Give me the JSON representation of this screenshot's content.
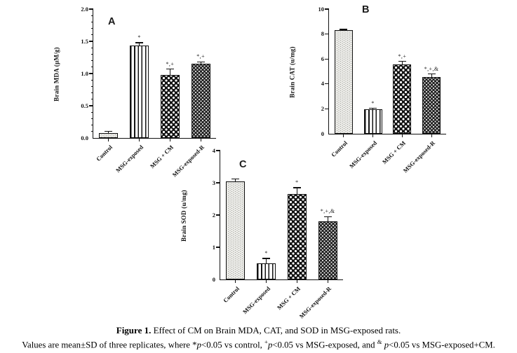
{
  "chart_data": [
    {
      "panel_label": "A",
      "type": "bar",
      "ylabel": "Brain MDA (µM/g)",
      "ylim": [
        0,
        2
      ],
      "ytick_values": [
        0,
        0.5,
        1,
        1.5,
        2
      ],
      "yticks": [
        "0.0",
        "0.5",
        "1.0",
        "1.5",
        "2.0"
      ],
      "minor_per_major": 5,
      "categories": [
        "Control",
        "MSG-exposed",
        "MSG + CM",
        "MSG-exposed-R"
      ],
      "values": [
        0.08,
        1.43,
        0.98,
        1.15
      ],
      "errors": [
        0.02,
        0.05,
        0.09,
        0.03
      ],
      "annotations": [
        "",
        "*",
        "*,+",
        "*,+"
      ],
      "patterns": [
        "dots-light",
        "vertical-stripes",
        "checker-large",
        "checker-small"
      ],
      "grid": "off",
      "legend": "none"
    },
    {
      "panel_label": "B",
      "type": "bar",
      "ylabel": "Brain CAT (u/mg)",
      "ylim": [
        0,
        10
      ],
      "ytick_values": [
        0,
        2,
        4,
        6,
        8,
        10
      ],
      "yticks": [
        "0",
        "2",
        "4",
        "6",
        "8",
        "10"
      ],
      "minor_per_major": 1,
      "categories": [
        "Control",
        "MSG-exposed",
        "MSG + CM",
        "MSG-exposed-R"
      ],
      "values": [
        8.3,
        1.95,
        5.55,
        4.55
      ],
      "errors": [
        0.06,
        0.1,
        0.25,
        0.25
      ],
      "annotations": [
        "",
        "*",
        "*,+",
        "*,+,&"
      ],
      "patterns": [
        "dots-light",
        "vertical-stripes",
        "checker-large",
        "checker-small"
      ],
      "grid": "off",
      "legend": "none"
    },
    {
      "panel_label": "C",
      "type": "bar",
      "ylabel": "Brain SOD (u/mg)",
      "ylim": [
        0,
        4
      ],
      "ytick_values": [
        0,
        1,
        2,
        3,
        4
      ],
      "yticks": [
        "0",
        "1",
        "2",
        "3",
        "4"
      ],
      "minor_per_major": 1,
      "categories": [
        "Control",
        "MSG-exposed",
        "MSG + CM",
        "MSG-exposed-R"
      ],
      "values": [
        3.05,
        0.5,
        2.65,
        1.8
      ],
      "errors": [
        0.07,
        0.15,
        0.2,
        0.15
      ],
      "annotations": [
        "",
        "*",
        "*",
        "*,+,&"
      ],
      "patterns": [
        "dots-light",
        "vertical-stripes",
        "checker-large",
        "checker-small"
      ],
      "grid": "off",
      "legend": "none"
    }
  ],
  "caption": {
    "line1": [
      {
        "text": "Figure 1.",
        "style": "bold"
      },
      {
        "text": " Effect of CM on Brain MDA, CAT, and SOD in MSG-exposed rats.",
        "style": "normal"
      }
    ],
    "line2": [
      {
        "text": "Values are mean±SD of three replicates, where *",
        "style": "normal"
      },
      {
        "text": "p",
        "style": "italic"
      },
      {
        "text": "<0.05 vs control, ",
        "style": "normal"
      },
      {
        "text": "+",
        "style": "sup"
      },
      {
        "text": "p",
        "style": "italic"
      },
      {
        "text": "<0.05 vs MSG-exposed, and ",
        "style": "normal"
      },
      {
        "text": "&",
        "style": "sup"
      },
      {
        "text": " ",
        "style": "normal"
      },
      {
        "text": "p",
        "style": "italic"
      },
      {
        "text": "<0.05 vs MSG-exposed+CM.",
        "style": "normal"
      }
    ]
  }
}
